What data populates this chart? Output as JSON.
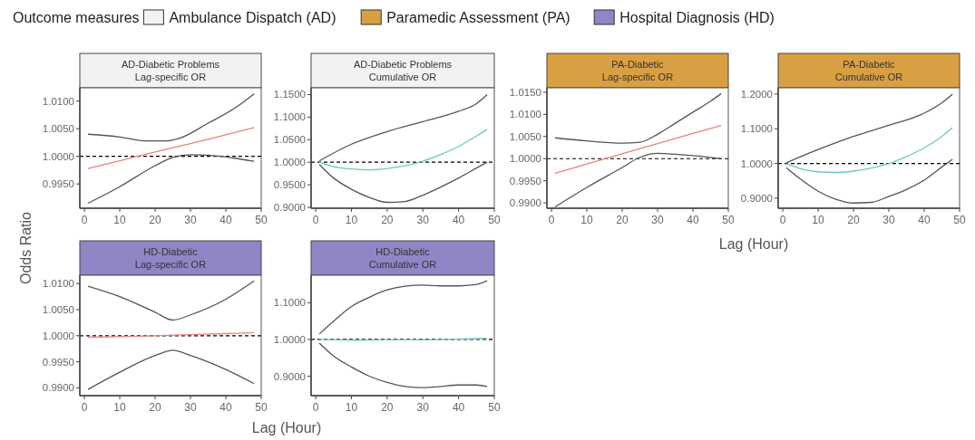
{
  "chart_data": [
    {
      "type": "other",
      "title": "Outcome measures",
      "categories": [
        "Ambulance Dispatch (AD)",
        "Paramedic Assessment (PA)",
        "Hospital Diagnosis (HD)"
      ],
      "colors": [
        "#f2f2f2",
        "#d9a043",
        "#8f86c6"
      ]
    },
    {
      "type": "line",
      "title": "AD-Diabetic Problems",
      "subtitle": "Lag-specific OR",
      "xlim": [
        -1.3,
        50
      ],
      "xticks": [
        0,
        10,
        20,
        30,
        40,
        50
      ],
      "ylim": [
        0.9906,
        1.0124
      ],
      "yticks": [
        {
          "value": 0.995,
          "label": "0.9950"
        },
        {
          "value": 1,
          "label": "1.0000"
        },
        {
          "value": 1.005,
          "label": "1.0050"
        },
        {
          "value": 1.01,
          "label": "1.0100"
        }
      ],
      "ref_lines": [
        {
          "axis": "y",
          "value": 1,
          "color": "#000000",
          "line_style": "dashed"
        }
      ],
      "series": [
        {
          "color": "#555555",
          "x": [
            1,
            10,
            17,
            23,
            27,
            35,
            42,
            48
          ],
          "values": [
            1.004,
            1.0035,
            1.0028,
            1.0028,
            1.0033,
            1.006,
            1.0085,
            1.0113
          ]
        },
        {
          "color": "#e8827a",
          "x": [
            1,
            10,
            20,
            30,
            40,
            48
          ],
          "values": [
            0.9978,
            0.9992,
            1.0008,
            1.0023,
            1.0039,
            1.0052
          ]
        },
        {
          "color": "#555555",
          "x": [
            1,
            10,
            20,
            25,
            30,
            35,
            42,
            48
          ],
          "values": [
            0.9915,
            0.9945,
            0.9983,
            0.9998,
            1.0003,
            1.0002,
            0.9997,
            0.9991
          ]
        }
      ]
    },
    {
      "type": "line",
      "title": "AD-Diabetic Problems",
      "subtitle": "Cumulative OR",
      "xlim": [
        -1.3,
        50
      ],
      "xticks": [
        0,
        10,
        20,
        30,
        40,
        50
      ],
      "ylim": [
        0.898,
        1.165
      ],
      "yticks": [
        {
          "value": 0.9,
          "label": "0.9000"
        },
        {
          "value": 0.95,
          "label": "0.9500"
        },
        {
          "value": 1,
          "label": "1.0000"
        },
        {
          "value": 1.05,
          "label": "1.0500"
        },
        {
          "value": 1.1,
          "label": "1.1000"
        },
        {
          "value": 1.15,
          "label": "1.1500"
        }
      ],
      "ref_lines": [
        {
          "axis": "y",
          "value": 1,
          "color": "#000000",
          "line_style": "dashed"
        }
      ],
      "series": [
        {
          "color": "#555555",
          "x": [
            1,
            10,
            20,
            30,
            40,
            45,
            48
          ],
          "values": [
            1.003,
            1.04,
            1.068,
            1.09,
            1.113,
            1.13,
            1.15
          ]
        },
        {
          "color": "#6cc9c0",
          "x": [
            1,
            5,
            10,
            15,
            20,
            25,
            30,
            35,
            40,
            45,
            48
          ],
          "values": [
            1.0,
            0.99,
            0.985,
            0.983,
            0.986,
            0.992,
            1.002,
            1.017,
            1.035,
            1.058,
            1.073
          ]
        },
        {
          "color": "#555555",
          "x": [
            1,
            5,
            10,
            15,
            20,
            25,
            30,
            35,
            40,
            45,
            48
          ],
          "values": [
            0.995,
            0.965,
            0.94,
            0.922,
            0.911,
            0.913,
            0.927,
            0.945,
            0.965,
            0.987,
            1.0
          ]
        }
      ]
    },
    {
      "type": "line",
      "title": "PA-Diabetic",
      "subtitle": "Lag-specific OR",
      "xlabel": "Lag (Hour)",
      "xlim": [
        -1.3,
        50
      ],
      "xticks": [
        0,
        10,
        20,
        30,
        40,
        50
      ],
      "ylim": [
        0.9888,
        1.016
      ],
      "yticks": [
        {
          "value": 0.99,
          "label": "0.9900"
        },
        {
          "value": 0.995,
          "label": "0.9950"
        },
        {
          "value": 1,
          "label": "1.0000"
        },
        {
          "value": 1.005,
          "label": "1.0050"
        },
        {
          "value": 1.01,
          "label": "1.0100"
        },
        {
          "value": 1.015,
          "label": "1.0150"
        }
      ],
      "ref_lines": [
        {
          "axis": "y",
          "value": 1,
          "color": "#000000",
          "line_style": "dashed"
        }
      ],
      "series": [
        {
          "color": "#555555",
          "x": [
            1,
            10,
            20,
            25,
            30,
            35,
            40,
            45,
            48
          ],
          "values": [
            1.0047,
            1.004,
            1.0035,
            1.0037,
            1.0055,
            1.008,
            1.0105,
            1.013,
            1.0147
          ]
        },
        {
          "color": "#e8827a",
          "x": [
            1,
            10,
            20,
            30,
            40,
            48
          ],
          "values": [
            0.9967,
            0.9988,
            1.0011,
            1.0034,
            1.0057,
            1.0075
          ]
        },
        {
          "color": "#555555",
          "x": [
            1,
            10,
            20,
            25,
            30,
            35,
            40,
            48
          ],
          "values": [
            0.9891,
            0.9935,
            0.998,
            1.0003,
            1.0012,
            1.001,
            1.0007,
            1.0
          ]
        }
      ]
    },
    {
      "type": "line",
      "title": "PA-Diabetic",
      "subtitle": "Cumulative OR",
      "xlim": [
        -1.3,
        50
      ],
      "xticks": [
        0,
        10,
        20,
        30,
        40,
        50
      ],
      "ylim": [
        0.871,
        1.218
      ],
      "yticks": [
        {
          "value": 0.9,
          "label": "0.9000"
        },
        {
          "value": 1,
          "label": "1.0000"
        },
        {
          "value": 1.1,
          "label": "1.1000"
        },
        {
          "value": 1.2,
          "label": "1.2000"
        }
      ],
      "ref_lines": [
        {
          "axis": "y",
          "value": 1,
          "color": "#000000",
          "line_style": "dashed"
        }
      ],
      "series": [
        {
          "color": "#555555",
          "x": [
            1,
            10,
            20,
            30,
            40,
            45,
            48
          ],
          "values": [
            1.002,
            1.04,
            1.078,
            1.11,
            1.145,
            1.175,
            1.2
          ]
        },
        {
          "color": "#6cc9c0",
          "x": [
            1,
            5,
            10,
            15,
            20,
            25,
            30,
            35,
            40,
            45,
            48
          ],
          "values": [
            1.0,
            0.985,
            0.976,
            0.974,
            0.978,
            0.987,
            1.0,
            1.02,
            1.045,
            1.078,
            1.103
          ]
        },
        {
          "color": "#555555",
          "x": [
            1,
            5,
            10,
            15,
            20,
            25,
            30,
            35,
            40,
            45,
            48
          ],
          "values": [
            0.988,
            0.955,
            0.92,
            0.897,
            0.886,
            0.888,
            0.905,
            0.925,
            0.952,
            0.99,
            1.012
          ]
        }
      ]
    },
    {
      "type": "line",
      "title": "HD-Diabetic",
      "subtitle": "Lag-specific OR",
      "xlabel": "Lag (Hour)",
      "ylabel": "Odds Ratio",
      "xlim": [
        -1.3,
        50
      ],
      "xticks": [
        0,
        10,
        20,
        30,
        40,
        50
      ],
      "ylim": [
        0.9885,
        1.0116
      ],
      "yticks": [
        {
          "value": 0.99,
          "label": "0.9900"
        },
        {
          "value": 0.995,
          "label": "0.9950"
        },
        {
          "value": 1,
          "label": "1.0000"
        },
        {
          "value": 1.005,
          "label": "1.0050"
        },
        {
          "value": 1.01,
          "label": "1.0100"
        }
      ],
      "ref_lines": [
        {
          "axis": "y",
          "value": 1,
          "color": "#000000",
          "line_style": "dashed"
        }
      ],
      "series": [
        {
          "color": "#555555",
          "x": [
            1,
            10,
            20,
            25,
            30,
            40,
            48
          ],
          "values": [
            1.0095,
            1.0075,
            1.0045,
            1.003,
            1.004,
            1.007,
            1.0105
          ]
        },
        {
          "color": "#e8827a",
          "x": [
            1,
            10,
            20,
            30,
            40,
            48
          ],
          "values": [
            0.9997,
            0.9998,
            1.0,
            1.0002,
            1.0004,
            1.0006
          ]
        },
        {
          "color": "#555555",
          "x": [
            1,
            10,
            20,
            25,
            30,
            40,
            48
          ],
          "values": [
            0.9897,
            0.993,
            0.9962,
            0.9972,
            0.9962,
            0.9935,
            0.9908
          ]
        }
      ]
    },
    {
      "type": "line",
      "title": "HD-Diabetic",
      "subtitle": "Cumulative OR",
      "xlim": [
        -1.3,
        50
      ],
      "xticks": [
        0,
        10,
        20,
        30,
        40,
        50
      ],
      "ylim": [
        0.847,
        1.175
      ],
      "yticks": [
        {
          "value": 0.9,
          "label": "0.9000"
        },
        {
          "value": 1,
          "label": "1.0000"
        },
        {
          "value": 1.1,
          "label": "1.1000"
        }
      ],
      "ref_lines": [
        {
          "axis": "y",
          "value": 1,
          "color": "#000000",
          "line_style": "dashed"
        }
      ],
      "series": [
        {
          "color": "#555555",
          "x": [
            1,
            5,
            10,
            15,
            20,
            25,
            30,
            35,
            40,
            45,
            48
          ],
          "values": [
            1.015,
            1.05,
            1.09,
            1.115,
            1.135,
            1.145,
            1.148,
            1.146,
            1.146,
            1.15,
            1.16
          ]
        },
        {
          "color": "#6cc9c0",
          "x": [
            1,
            10,
            20,
            30,
            40,
            48
          ],
          "values": [
            1.0,
            0.998,
            0.999,
            0.999,
            1.001,
            1.003
          ]
        },
        {
          "color": "#555555",
          "x": [
            1,
            5,
            10,
            15,
            20,
            25,
            30,
            35,
            40,
            45,
            48
          ],
          "values": [
            0.99,
            0.955,
            0.925,
            0.9,
            0.883,
            0.872,
            0.869,
            0.872,
            0.876,
            0.876,
            0.872
          ]
        }
      ]
    }
  ]
}
